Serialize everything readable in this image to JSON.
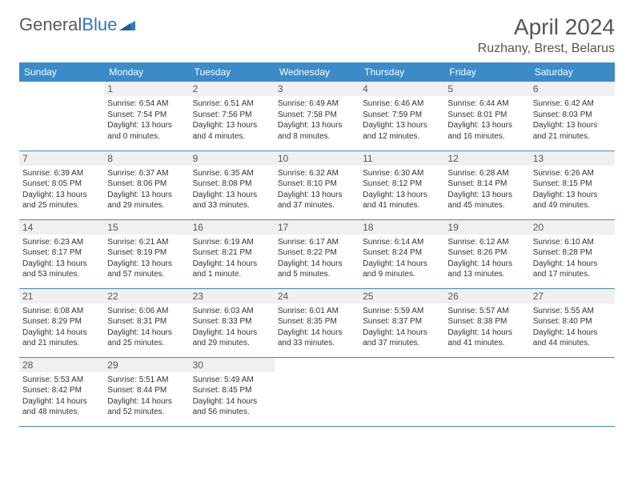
{
  "logo": {
    "part1": "General",
    "part2": "Blue"
  },
  "title": {
    "month": "April 2024",
    "location": "Ruzhany, Brest, Belarus"
  },
  "colors": {
    "header_bg": "#3b8bc9",
    "header_text": "#ffffff",
    "daynum_bg": "#f0f0f0",
    "text": "#333333",
    "border": "#3b8bc9",
    "logo_gray": "#5a5a5a",
    "logo_blue": "#2a7bbf"
  },
  "typography": {
    "title_fontsize": 28,
    "location_fontsize": 16,
    "header_fontsize": 12,
    "daynum_fontsize": 12,
    "body_fontsize": 10
  },
  "weekdays": [
    "Sunday",
    "Monday",
    "Tuesday",
    "Wednesday",
    "Thursday",
    "Friday",
    "Saturday"
  ],
  "weeks": [
    [
      {
        "n": "",
        "sr": "",
        "ss": "",
        "dl": ""
      },
      {
        "n": "1",
        "sr": "Sunrise: 6:54 AM",
        "ss": "Sunset: 7:54 PM",
        "dl": "Daylight: 13 hours and 0 minutes."
      },
      {
        "n": "2",
        "sr": "Sunrise: 6:51 AM",
        "ss": "Sunset: 7:56 PM",
        "dl": "Daylight: 13 hours and 4 minutes."
      },
      {
        "n": "3",
        "sr": "Sunrise: 6:49 AM",
        "ss": "Sunset: 7:58 PM",
        "dl": "Daylight: 13 hours and 8 minutes."
      },
      {
        "n": "4",
        "sr": "Sunrise: 6:46 AM",
        "ss": "Sunset: 7:59 PM",
        "dl": "Daylight: 13 hours and 12 minutes."
      },
      {
        "n": "5",
        "sr": "Sunrise: 6:44 AM",
        "ss": "Sunset: 8:01 PM",
        "dl": "Daylight: 13 hours and 16 minutes."
      },
      {
        "n": "6",
        "sr": "Sunrise: 6:42 AM",
        "ss": "Sunset: 8:03 PM",
        "dl": "Daylight: 13 hours and 21 minutes."
      }
    ],
    [
      {
        "n": "7",
        "sr": "Sunrise: 6:39 AM",
        "ss": "Sunset: 8:05 PM",
        "dl": "Daylight: 13 hours and 25 minutes."
      },
      {
        "n": "8",
        "sr": "Sunrise: 6:37 AM",
        "ss": "Sunset: 8:06 PM",
        "dl": "Daylight: 13 hours and 29 minutes."
      },
      {
        "n": "9",
        "sr": "Sunrise: 6:35 AM",
        "ss": "Sunset: 8:08 PM",
        "dl": "Daylight: 13 hours and 33 minutes."
      },
      {
        "n": "10",
        "sr": "Sunrise: 6:32 AM",
        "ss": "Sunset: 8:10 PM",
        "dl": "Daylight: 13 hours and 37 minutes."
      },
      {
        "n": "11",
        "sr": "Sunrise: 6:30 AM",
        "ss": "Sunset: 8:12 PM",
        "dl": "Daylight: 13 hours and 41 minutes."
      },
      {
        "n": "12",
        "sr": "Sunrise: 6:28 AM",
        "ss": "Sunset: 8:14 PM",
        "dl": "Daylight: 13 hours and 45 minutes."
      },
      {
        "n": "13",
        "sr": "Sunrise: 6:26 AM",
        "ss": "Sunset: 8:15 PM",
        "dl": "Daylight: 13 hours and 49 minutes."
      }
    ],
    [
      {
        "n": "14",
        "sr": "Sunrise: 6:23 AM",
        "ss": "Sunset: 8:17 PM",
        "dl": "Daylight: 13 hours and 53 minutes."
      },
      {
        "n": "15",
        "sr": "Sunrise: 6:21 AM",
        "ss": "Sunset: 8:19 PM",
        "dl": "Daylight: 13 hours and 57 minutes."
      },
      {
        "n": "16",
        "sr": "Sunrise: 6:19 AM",
        "ss": "Sunset: 8:21 PM",
        "dl": "Daylight: 14 hours and 1 minute."
      },
      {
        "n": "17",
        "sr": "Sunrise: 6:17 AM",
        "ss": "Sunset: 8:22 PM",
        "dl": "Daylight: 14 hours and 5 minutes."
      },
      {
        "n": "18",
        "sr": "Sunrise: 6:14 AM",
        "ss": "Sunset: 8:24 PM",
        "dl": "Daylight: 14 hours and 9 minutes."
      },
      {
        "n": "19",
        "sr": "Sunrise: 6:12 AM",
        "ss": "Sunset: 8:26 PM",
        "dl": "Daylight: 14 hours and 13 minutes."
      },
      {
        "n": "20",
        "sr": "Sunrise: 6:10 AM",
        "ss": "Sunset: 8:28 PM",
        "dl": "Daylight: 14 hours and 17 minutes."
      }
    ],
    [
      {
        "n": "21",
        "sr": "Sunrise: 6:08 AM",
        "ss": "Sunset: 8:29 PM",
        "dl": "Daylight: 14 hours and 21 minutes."
      },
      {
        "n": "22",
        "sr": "Sunrise: 6:06 AM",
        "ss": "Sunset: 8:31 PM",
        "dl": "Daylight: 14 hours and 25 minutes."
      },
      {
        "n": "23",
        "sr": "Sunrise: 6:03 AM",
        "ss": "Sunset: 8:33 PM",
        "dl": "Daylight: 14 hours and 29 minutes."
      },
      {
        "n": "24",
        "sr": "Sunrise: 6:01 AM",
        "ss": "Sunset: 8:35 PM",
        "dl": "Daylight: 14 hours and 33 minutes."
      },
      {
        "n": "25",
        "sr": "Sunrise: 5:59 AM",
        "ss": "Sunset: 8:37 PM",
        "dl": "Daylight: 14 hours and 37 minutes."
      },
      {
        "n": "26",
        "sr": "Sunrise: 5:57 AM",
        "ss": "Sunset: 8:38 PM",
        "dl": "Daylight: 14 hours and 41 minutes."
      },
      {
        "n": "27",
        "sr": "Sunrise: 5:55 AM",
        "ss": "Sunset: 8:40 PM",
        "dl": "Daylight: 14 hours and 44 minutes."
      }
    ],
    [
      {
        "n": "28",
        "sr": "Sunrise: 5:53 AM",
        "ss": "Sunset: 8:42 PM",
        "dl": "Daylight: 14 hours and 48 minutes."
      },
      {
        "n": "29",
        "sr": "Sunrise: 5:51 AM",
        "ss": "Sunset: 8:44 PM",
        "dl": "Daylight: 14 hours and 52 minutes."
      },
      {
        "n": "30",
        "sr": "Sunrise: 5:49 AM",
        "ss": "Sunset: 8:45 PM",
        "dl": "Daylight: 14 hours and 56 minutes."
      },
      {
        "n": "",
        "sr": "",
        "ss": "",
        "dl": ""
      },
      {
        "n": "",
        "sr": "",
        "ss": "",
        "dl": ""
      },
      {
        "n": "",
        "sr": "",
        "ss": "",
        "dl": ""
      },
      {
        "n": "",
        "sr": "",
        "ss": "",
        "dl": ""
      }
    ]
  ]
}
